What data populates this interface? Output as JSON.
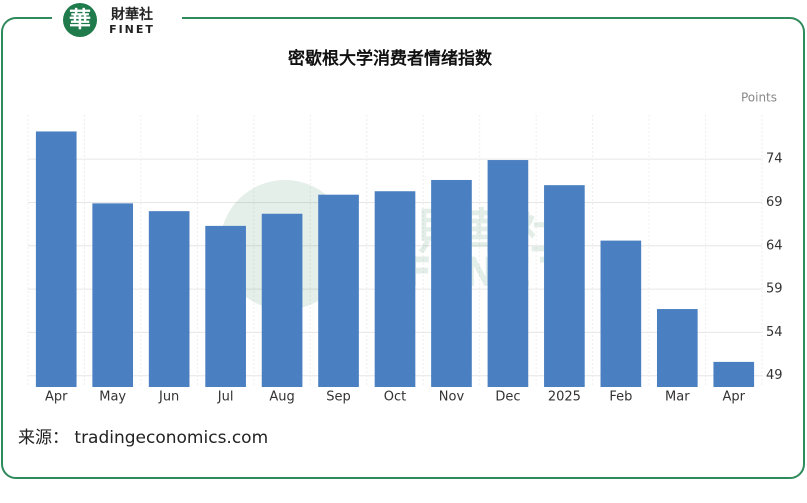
{
  "header": {
    "logo_mark": "華",
    "logo_name": "財華社",
    "logo_sub": "FINET"
  },
  "chart_data": {
    "type": "bar",
    "title": "密歇根大学消费者情绪指数",
    "y_unit": "Points",
    "categories": [
      "Apr",
      "May",
      "Jun",
      "Jul",
      "Aug",
      "Sep",
      "Oct",
      "Nov",
      "Dec",
      "2025",
      "Feb",
      "Mar",
      "Apr"
    ],
    "values": [
      77.2,
      68.9,
      68.0,
      66.3,
      67.7,
      69.9,
      70.3,
      71.6,
      73.9,
      71.0,
      64.6,
      56.7,
      50.6
    ],
    "color": "#4a7fc1",
    "ylim": [
      47.7,
      79.1
    ],
    "yticks": [
      49,
      54,
      59,
      64,
      69,
      74
    ],
    "grid": true
  },
  "source": "来源： tradingeconomics.com"
}
